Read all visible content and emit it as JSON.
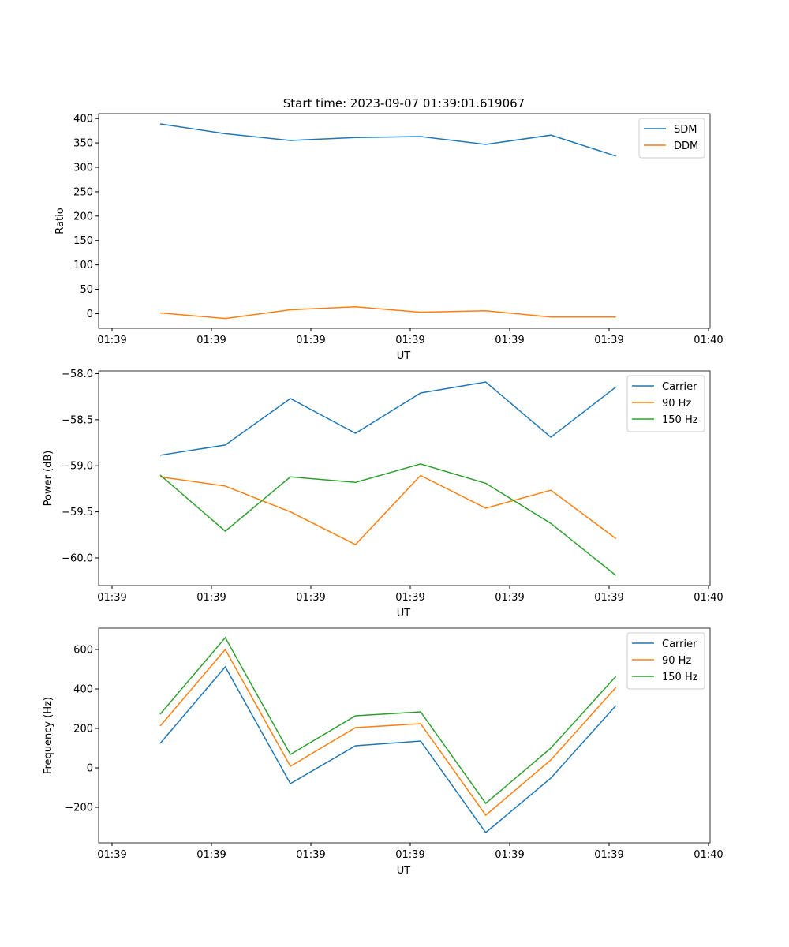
{
  "title": "Start time: 2023-09-07 01:39:01.619067",
  "colors": {
    "c0": "#1f77b4",
    "c1": "#ff7f0e",
    "c2": "#2ca02c"
  },
  "chart_data": [
    {
      "type": "line",
      "xlabel": "UT",
      "ylabel": "Ratio",
      "xlim": [
        -1.35,
        60.16
      ],
      "ylim": [
        -30,
        410
      ],
      "xticks": [
        0,
        10,
        20,
        30,
        40,
        50,
        60
      ],
      "xtick_labels": [
        "01:39",
        "01:39",
        "01:39",
        "01:39",
        "01:39",
        "01:39",
        "01:40"
      ],
      "yticks": [
        0,
        50,
        100,
        150,
        200,
        250,
        300,
        350,
        400
      ],
      "ytick_labels": [
        "0",
        "50",
        "100",
        "150",
        "200",
        "250",
        "300",
        "350",
        "400"
      ],
      "x": [
        4.84,
        11.39,
        17.94,
        24.49,
        31.04,
        37.59,
        44.14,
        50.69
      ],
      "series": [
        {
          "name": "SDM",
          "color": "#1f77b4",
          "values": [
            389,
            369,
            355,
            361,
            363,
            347,
            366,
            323
          ]
        },
        {
          "name": "DDM",
          "color": "#ff7f0e",
          "values": [
            1.6,
            -10,
            8,
            14,
            3,
            6,
            -7,
            -7
          ]
        }
      ],
      "legend": "top-right"
    },
    {
      "type": "line",
      "xlabel": "UT",
      "ylabel": "Power (dB)",
      "xlim": [
        -1.35,
        60.16
      ],
      "ylim": [
        -60.3,
        -57.97
      ],
      "xticks": [
        0,
        10,
        20,
        30,
        40,
        50,
        60
      ],
      "xtick_labels": [
        "01:39",
        "01:39",
        "01:39",
        "01:39",
        "01:39",
        "01:39",
        "01:40"
      ],
      "yticks": [
        -60,
        -59.5,
        -59,
        -58.5,
        -58
      ],
      "ytick_labels": [
        "−60.0",
        "−59.5",
        "−59.0",
        "−58.5",
        "−58.0"
      ],
      "x": [
        4.84,
        11.39,
        17.94,
        24.49,
        31.04,
        37.59,
        44.14,
        50.69
      ],
      "series": [
        {
          "name": "Carrier",
          "color": "#1f77b4",
          "values": [
            -58.885,
            -58.774,
            -58.27,
            -58.647,
            -58.21,
            -58.09,
            -58.69,
            -58.145
          ]
        },
        {
          "name": "90 Hz",
          "color": "#ff7f0e",
          "values": [
            -59.12,
            -59.22,
            -59.5,
            -59.855,
            -59.105,
            -59.46,
            -59.265,
            -59.79
          ]
        },
        {
          "name": "150 Hz",
          "color": "#2ca02c",
          "values": [
            -59.1,
            -59.71,
            -59.12,
            -59.18,
            -58.98,
            -59.19,
            -59.625,
            -60.19
          ]
        }
      ],
      "legend": "top-right"
    },
    {
      "type": "line",
      "xlabel": "UT",
      "ylabel": "Frequency (Hz)",
      "xlim": [
        -1.35,
        60.16
      ],
      "ylim": [
        -380,
        708
      ],
      "xticks": [
        0,
        10,
        20,
        30,
        40,
        50,
        60
      ],
      "xtick_labels": [
        "01:39",
        "01:39",
        "01:39",
        "01:39",
        "01:39",
        "01:39",
        "01:40"
      ],
      "yticks": [
        -200,
        0,
        200,
        400,
        600
      ],
      "ytick_labels": [
        "−200",
        "0",
        "200",
        "400",
        "600"
      ],
      "x": [
        4.84,
        11.39,
        17.94,
        24.49,
        31.04,
        37.59,
        44.14,
        50.69
      ],
      "series": [
        {
          "name": "Carrier",
          "color": "#1f77b4",
          "values": [
            124,
            512,
            -80,
            112,
            136,
            -328,
            -52,
            316
          ]
        },
        {
          "name": "90 Hz",
          "color": "#ff7f0e",
          "values": [
            212,
            600,
            8,
            204,
            224,
            -240,
            40,
            408
          ]
        },
        {
          "name": "150 Hz",
          "color": "#2ca02c",
          "values": [
            272,
            660,
            68,
            264,
            284,
            -180,
            100,
            464
          ]
        }
      ],
      "legend": "top-right"
    }
  ]
}
